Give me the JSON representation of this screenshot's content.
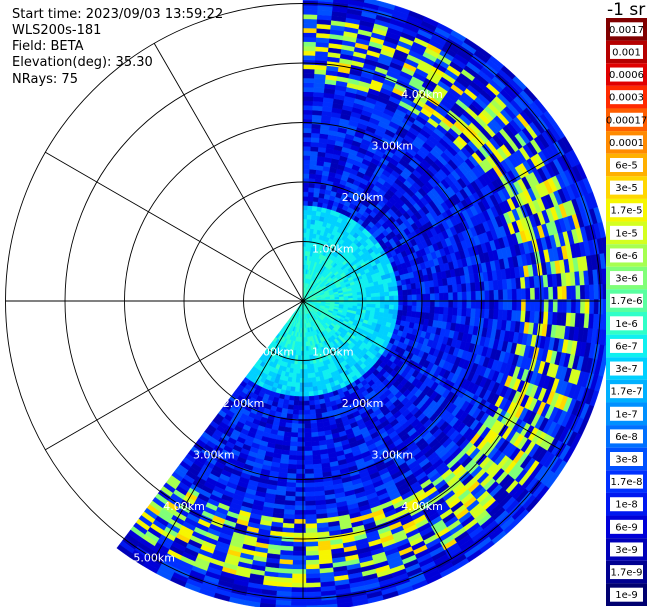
{
  "info": {
    "start_time": "Start time: 2023/09/03 13:59:22",
    "instrument": "WLS200s-181",
    "field": "Field: BETA",
    "elevation": "Elevation(deg): 35.30",
    "nrays": "NRays: 75"
  },
  "colorbar": {
    "title": "-1 sr",
    "labels": [
      "0.0017",
      "0.001",
      "0.0006",
      "0.0003",
      "0.00017",
      "0.0001",
      "6e-5",
      "3e-5",
      "1.7e-5",
      "1e-5",
      "6e-6",
      "3e-6",
      "1.7e-6",
      "1e-6",
      "6e-7",
      "3e-7",
      "1.7e-7",
      "1e-7",
      "6e-8",
      "3e-8",
      "1.7e-8",
      "1e-8",
      "6e-9",
      "3e-9",
      "1.7e-9",
      "1e-9"
    ],
    "colors": [
      "#800000",
      "#b50000",
      "#e00000",
      "#ff2a00",
      "#ff5e00",
      "#ff8a00",
      "#ffb000",
      "#ffd600",
      "#f6f600",
      "#d4ff20",
      "#a6ff50",
      "#80ff78",
      "#58ffa0",
      "#30ffc8",
      "#10f0f0",
      "#00d0ff",
      "#00b0ff",
      "#0090ff",
      "#0070ff",
      "#0050ff",
      "#0030ff",
      "#0018f0",
      "#0000d8",
      "#0000b8",
      "#000090",
      "#000070"
    ]
  },
  "chart_data": {
    "type": "heatmap",
    "projection": "polar (PPI)",
    "range_ring_labels": [
      "1.00km",
      "2.00km",
      "3.00km",
      "4.00km",
      "5.00km"
    ],
    "range_rings_km": [
      1,
      2,
      3,
      4,
      5
    ],
    "azimuth_spokes_deg": [
      0,
      30,
      60,
      90,
      120,
      150,
      180,
      210,
      240,
      270,
      300,
      330
    ],
    "scan_sector_deg": [
      0,
      217
    ],
    "nrays": 75,
    "max_range_km": 5.2,
    "colorscale": "jet, log",
    "value_range": [
      "1e-9",
      "0.0017"
    ],
    "features": [
      {
        "label": "near-range high signal",
        "range_km": [
          0,
          1.6
        ],
        "approx_value": "1e-6"
      },
      {
        "label": "background",
        "range_km": [
          1.6,
          5.2
        ],
        "approx_value": "1e-8"
      },
      {
        "label": "elevated echo band",
        "range_km": [
          3.7,
          4.8
        ],
        "approx_value": "1e-5"
      }
    ]
  }
}
